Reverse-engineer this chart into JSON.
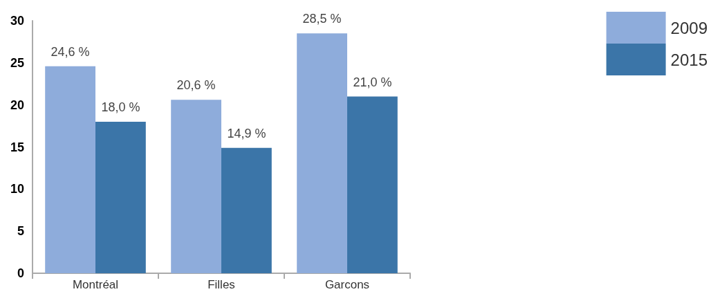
{
  "chart_data": {
    "type": "bar",
    "categories": [
      "Montréal",
      "Filles",
      "Garcons"
    ],
    "series": [
      {
        "name": "2009",
        "color": "#8eacdb",
        "values": [
          24.6,
          20.6,
          28.5
        ],
        "value_labels": [
          "24,6 %",
          "20,6 %",
          "28,5 %"
        ]
      },
      {
        "name": "2015",
        "color": "#3b75a8",
        "values": [
          18.0,
          14.9,
          21.0
        ],
        "value_labels": [
          "18,0 %",
          "14,9 %",
          "21,0 %"
        ]
      }
    ],
    "ylim": [
      0,
      30
    ],
    "yticks": [
      0,
      5,
      10,
      15,
      20,
      25,
      30
    ],
    "grid": false,
    "legend": "top right"
  }
}
